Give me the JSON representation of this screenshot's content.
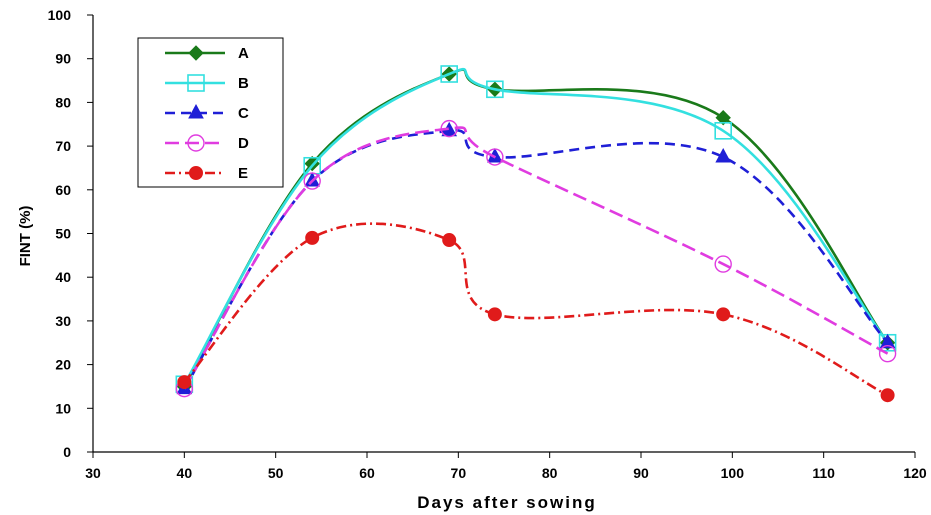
{
  "chart_data": {
    "type": "line",
    "title": "",
    "xlabel": "Days after sowing",
    "ylabel": "FINT (%)",
    "xlim": [
      30,
      120
    ],
    "ylim": [
      0,
      100
    ],
    "xticks": [
      30,
      40,
      50,
      60,
      70,
      80,
      90,
      100,
      110,
      120
    ],
    "yticks": [
      0,
      10,
      20,
      30,
      40,
      50,
      60,
      70,
      80,
      90,
      100
    ],
    "grid": false,
    "legend_position": "top-left",
    "x": [
      40,
      54,
      69,
      74,
      99,
      117
    ],
    "series": [
      {
        "name": "A",
        "values": [
          15,
          66,
          86.5,
          83,
          76.5,
          25
        ],
        "color": "#1a7a1a",
        "marker": "diamond",
        "dash": "solid"
      },
      {
        "name": "B",
        "values": [
          15.5,
          65.5,
          86.5,
          83,
          73.5,
          25
        ],
        "color": "#33e0e0",
        "marker": "square-open",
        "dash": "solid"
      },
      {
        "name": "C",
        "values": [
          14.5,
          62,
          73.5,
          67.5,
          67.5,
          25
        ],
        "color": "#1f1fd6",
        "marker": "triangle",
        "dash": "dash"
      },
      {
        "name": "D",
        "values": [
          14.5,
          62,
          74,
          67.5,
          43,
          22.5
        ],
        "color": "#e03ce0",
        "marker": "circle-open",
        "dash": "longdash"
      },
      {
        "name": "E",
        "values": [
          16,
          49,
          48.5,
          31.5,
          31.5,
          13
        ],
        "color": "#e01b1b",
        "marker": "circle",
        "dash": "dashdot"
      }
    ]
  }
}
